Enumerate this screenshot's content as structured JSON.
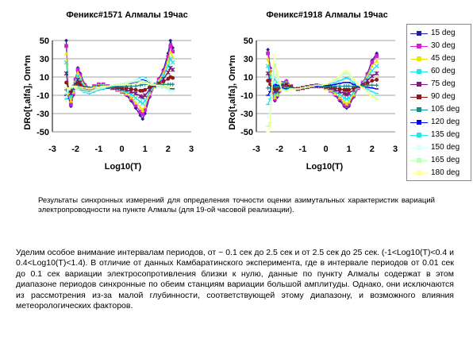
{
  "chart_data": [
    {
      "type": "line",
      "title": "Феникс#1571 Алмалы 19час",
      "xlabel": "Log10(T)",
      "ylabel": "DRo[t,alfa], Om*m",
      "xlim": [
        -3,
        3
      ],
      "ylim": [
        -50,
        50
      ],
      "xticks": [
        "-3",
        "-2",
        "-1",
        "0",
        "1",
        "2",
        "3"
      ],
      "yticks": [
        "50",
        "30",
        "10",
        "-10",
        "-30",
        "-50"
      ],
      "grid": "horizontal",
      "x": [
        -2.4,
        -2.3,
        -2.2,
        -2.1,
        -2.0,
        -1.9,
        -1.8,
        -1.6,
        -1.4,
        -1.2,
        -1.0,
        -0.8,
        -0.6,
        -0.4,
        -0.2,
        0.0,
        0.2,
        0.4,
        0.6,
        0.8,
        0.9,
        1.0,
        1.2,
        1.4,
        1.6,
        1.8,
        2.0,
        2.1,
        2.2
      ],
      "series": [
        {
          "name": "15 deg",
          "values": [
            50,
            -12,
            -22,
            -10,
            8,
            20,
            14,
            2,
            -2,
            0,
            2,
            2,
            0,
            -2,
            -4,
            -6,
            -10,
            -16,
            -24,
            -32,
            -36,
            -30,
            -12,
            0,
            8,
            18,
            36,
            50,
            42
          ]
        },
        {
          "name": "30 deg",
          "values": [
            44,
            -10,
            -20,
            -8,
            7,
            18,
            12,
            1,
            -3,
            0,
            2,
            2,
            0,
            -2,
            -4,
            -6,
            -9,
            -14,
            -21,
            -28,
            -31,
            -26,
            -10,
            0,
            7,
            16,
            32,
            44,
            38
          ]
        },
        {
          "name": "45 deg",
          "values": [
            36,
            -8,
            -16,
            -6,
            5,
            15,
            10,
            0,
            -3,
            -1,
            1,
            1,
            0,
            -2,
            -3,
            -5,
            -8,
            -12,
            -18,
            -23,
            -26,
            -22,
            -8,
            0,
            6,
            14,
            28,
            38,
            32
          ]
        },
        {
          "name": "60 deg",
          "values": [
            26,
            -6,
            -12,
            -4,
            4,
            11,
            7,
            -1,
            -4,
            -2,
            0,
            0,
            -1,
            -2,
            -3,
            -4,
            -6,
            -9,
            -13,
            -17,
            -19,
            -16,
            -6,
            0,
            4,
            11,
            22,
            30,
            26
          ]
        },
        {
          "name": "75 deg",
          "values": [
            14,
            -4,
            -8,
            -2,
            2,
            7,
            4,
            -2,
            -5,
            -3,
            -1,
            -1,
            -1,
            -2,
            -2,
            -3,
            -4,
            -6,
            -8,
            -11,
            -12,
            -10,
            -4,
            1,
            3,
            8,
            15,
            20,
            18
          ]
        },
        {
          "name": "90 deg",
          "values": [
            4,
            -3,
            -5,
            -1,
            1,
            3,
            1,
            -3,
            -6,
            -4,
            -2,
            -2,
            -1,
            -1,
            -1,
            -2,
            -2,
            -3,
            -4,
            -5,
            -5,
            -4,
            -1,
            1,
            2,
            5,
            8,
            10,
            9
          ]
        },
        {
          "name": "105 deg",
          "values": [
            -4,
            -2,
            -3,
            0,
            0,
            0,
            -2,
            -5,
            -7,
            -5,
            -3,
            -2,
            -1,
            -1,
            0,
            0,
            0,
            0,
            0,
            1,
            2,
            2,
            2,
            2,
            1,
            2,
            2,
            2,
            2
          ]
        },
        {
          "name": "120 deg",
          "values": [
            -10,
            -3,
            -2,
            0,
            -1,
            -3,
            -4,
            -6,
            -8,
            -6,
            -4,
            -3,
            -1,
            0,
            1,
            2,
            2,
            3,
            4,
            6,
            7,
            6,
            4,
            2,
            0,
            -1,
            -2,
            -3,
            -3
          ]
        },
        {
          "name": "135 deg",
          "values": [
            -14,
            -4,
            -2,
            0,
            -2,
            -4,
            -5,
            -7,
            -8,
            -6,
            -4,
            -3,
            -1,
            0,
            1,
            3,
            4,
            5,
            7,
            9,
            10,
            9,
            5,
            2,
            0,
            -2,
            -4,
            -6,
            -6
          ]
        },
        {
          "name": "150 deg",
          "values": [
            -12,
            -4,
            -2,
            -1,
            -2,
            -4,
            -5,
            -6,
            -7,
            -5,
            -3,
            -2,
            0,
            1,
            2,
            3,
            4,
            5,
            7,
            8,
            9,
            8,
            5,
            2,
            0,
            -2,
            -4,
            -6,
            -6
          ]
        },
        {
          "name": "165 deg",
          "values": [
            -8,
            -3,
            -2,
            -1,
            -1,
            -3,
            -3,
            -4,
            -5,
            -4,
            -2,
            -1,
            0,
            1,
            2,
            2,
            3,
            4,
            5,
            6,
            6,
            5,
            3,
            2,
            0,
            -1,
            -2,
            -4,
            -4
          ]
        },
        {
          "name": "180 deg",
          "values": [
            -2,
            -2,
            -1,
            0,
            0,
            -1,
            -1,
            -2,
            -3,
            -2,
            -1,
            0,
            0,
            1,
            1,
            1,
            2,
            2,
            3,
            3,
            3,
            3,
            2,
            1,
            1,
            0,
            0,
            -1,
            -1
          ]
        }
      ]
    },
    {
      "type": "line",
      "title": "Феникс#1918 Алмалы 19час",
      "xlabel": "Log10(T)",
      "ylabel": "DRo[t,alfa], Om*m",
      "xlim": [
        -3,
        3
      ],
      "ylim": [
        -50,
        50
      ],
      "xticks": [
        "-3",
        "-2",
        "-1",
        "0",
        "1",
        "2",
        "3"
      ],
      "yticks": [
        "50",
        "30",
        "10",
        "-10",
        "-30",
        "-50"
      ],
      "grid": "horizontal",
      "x": [
        -2.5,
        -2.4,
        -2.3,
        -2.2,
        -2.1,
        -2.0,
        -1.9,
        -1.7,
        -1.5,
        -1.2,
        -1.0,
        -0.8,
        -0.6,
        -0.4,
        -0.2,
        0.0,
        0.2,
        0.4,
        0.6,
        0.8,
        0.9,
        1.0,
        1.2,
        1.4,
        1.6,
        1.8,
        2.0,
        2.2
      ],
      "series": [
        {
          "name": "15 deg",
          "values": [
            40,
            20,
            -5,
            -16,
            -12,
            -6,
            4,
            6,
            0,
            -3,
            -2,
            -1,
            0,
            1,
            0,
            -2,
            -5,
            -10,
            -16,
            -22,
            -24,
            -22,
            -12,
            -2,
            4,
            14,
            28,
            36
          ]
        },
        {
          "name": "30 deg",
          "values": [
            36,
            18,
            -4,
            -14,
            -10,
            -5,
            3,
            5,
            0,
            -3,
            -2,
            -1,
            0,
            1,
            0,
            -2,
            -5,
            -9,
            -14,
            -20,
            -22,
            -20,
            -11,
            -2,
            4,
            13,
            26,
            33
          ]
        },
        {
          "name": "45 deg",
          "values": [
            30,
            14,
            -3,
            -12,
            -9,
            -4,
            3,
            4,
            0,
            -3,
            -2,
            -1,
            0,
            1,
            0,
            -2,
            -4,
            -8,
            -12,
            -17,
            -19,
            -17,
            -9,
            -1,
            3,
            11,
            22,
            28
          ]
        },
        {
          "name": "60 deg",
          "values": [
            22,
            10,
            -2,
            -9,
            -7,
            -3,
            2,
            3,
            -1,
            -3,
            -2,
            -1,
            0,
            0,
            0,
            -1,
            -3,
            -6,
            -9,
            -13,
            -14,
            -13,
            -7,
            -1,
            3,
            9,
            17,
            22
          ]
        },
        {
          "name": "75 deg",
          "values": [
            14,
            6,
            -2,
            -6,
            -5,
            -2,
            1,
            2,
            -1,
            -3,
            -2,
            -1,
            0,
            0,
            0,
            -1,
            -2,
            -4,
            -6,
            -8,
            -9,
            -8,
            -4,
            0,
            2,
            6,
            11,
            14
          ]
        },
        {
          "name": "90 deg",
          "values": [
            6,
            2,
            -1,
            -3,
            -3,
            -1,
            0,
            1,
            -1,
            -3,
            -2,
            -1,
            0,
            0,
            0,
            0,
            -1,
            -2,
            -3,
            -4,
            -4,
            -4,
            -2,
            0,
            1,
            3,
            6,
            7
          ]
        },
        {
          "name": "105 deg",
          "values": [
            -2,
            -2,
            -1,
            0,
            -1,
            0,
            -1,
            -1,
            -2,
            -3,
            -2,
            -1,
            0,
            0,
            0,
            0,
            0,
            0,
            0,
            0,
            0,
            0,
            0,
            0,
            0,
            1,
            1,
            1
          ]
        },
        {
          "name": "120 deg",
          "values": [
            -10,
            -6,
            0,
            2,
            1,
            1,
            -2,
            -3,
            -3,
            -3,
            -2,
            -1,
            0,
            0,
            1,
            1,
            1,
            2,
            3,
            4,
            4,
            4,
            2,
            0,
            -1,
            -1,
            -2,
            -3
          ]
        },
        {
          "name": "135 deg",
          "values": [
            -20,
            -14,
            2,
            8,
            4,
            2,
            -3,
            -4,
            -3,
            -3,
            -2,
            -1,
            0,
            1,
            1,
            2,
            3,
            4,
            6,
            8,
            9,
            8,
            4,
            1,
            -1,
            -3,
            -6,
            -8
          ]
        },
        {
          "name": "150 deg",
          "values": [
            -34,
            -26,
            4,
            16,
            8,
            3,
            -4,
            -5,
            -3,
            -3,
            -2,
            -1,
            0,
            1,
            1,
            2,
            4,
            6,
            9,
            12,
            13,
            12,
            6,
            1,
            -2,
            -5,
            -9,
            -12
          ]
        },
        {
          "name": "165 deg",
          "values": [
            -44,
            -40,
            10,
            24,
            12,
            4,
            -4,
            -5,
            -3,
            -3,
            -2,
            -1,
            0,
            1,
            1,
            2,
            4,
            7,
            10,
            14,
            15,
            14,
            7,
            1,
            -2,
            -6,
            -11,
            -14
          ]
        },
        {
          "name": "180 deg",
          "values": [
            -50,
            -46,
            18,
            34,
            16,
            5,
            -4,
            -5,
            -3,
            -3,
            -2,
            -1,
            0,
            1,
            1,
            2,
            5,
            8,
            11,
            16,
            17,
            15,
            8,
            2,
            -2,
            -7,
            -12,
            -15
          ]
        }
      ]
    }
  ],
  "colors": [
    "#1f1f9a",
    "#d41ed4",
    "#e8e800",
    "#19e6e6",
    "#7a1a7a",
    "#8a1a1a",
    "#1a8a8a",
    "#0000ff",
    "#1ae6e6",
    "#d8ffff",
    "#b8ffb8",
    "#ffff99"
  ],
  "markers": [
    "diamond",
    "square",
    "triangle",
    "x",
    "star",
    "circle",
    "plus",
    "dash",
    "dash",
    "dash",
    "dash",
    "dash"
  ],
  "legend_position": "right",
  "caption": "Результаты синхронных измерений для определения точности оценки азимутальных характеристик вариаций электропроводности на пункте Алмалы (для 19-ой часовой реализации).",
  "paragraph": "Уделим особое внимание интервалам периодов, от ~ 0.1 сек до 2.5 сек и от 2.5 сек до 25 сек. (-1<Log10(T)<0.4 и 0.4<Log10(T)<1.4). В отличие от данных Камбаратинского эксперимента, где в интервале периодов от 0.01 сек до 0.1 сек вариации электросопротивления близки к нулю, данные по пункту Алмалы содержат в этом диапазоне периодов синхронные по обеим станциям вариации большой амплитуды. Однако, они исключаются из рассмотрения из-за малой глубинности, соответствующей этому диапазону, и возможного влияния метеорологических факторов."
}
